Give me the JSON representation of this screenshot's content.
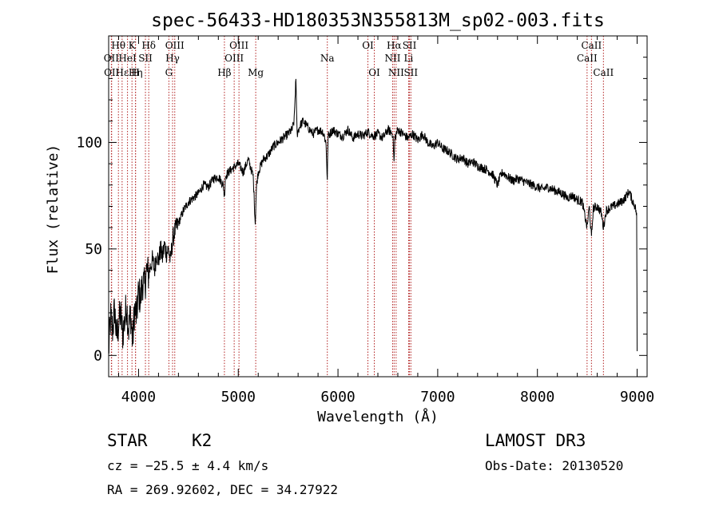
{
  "chart_data": {
    "type": "line",
    "title": "spec-56433-HD180353N355813M_sp02-003.fits",
    "xlabel": "Wavelength (Å)",
    "ylabel": "Flux (relative)",
    "xlim": [
      3700,
      9100
    ],
    "ylim": [
      -10,
      150
    ],
    "xticks": [
      4000,
      5000,
      6000,
      7000,
      8000,
      9000
    ],
    "yticks": [
      0,
      50,
      100
    ],
    "spectrum_anchors": {
      "x": [
        3700,
        3720,
        3740,
        3760,
        3780,
        3800,
        3820,
        3840,
        3860,
        3880,
        3900,
        3920,
        3940,
        3960,
        3980,
        4000,
        4020,
        4040,
        4060,
        4080,
        4100,
        4120,
        4140,
        4160,
        4180,
        4200,
        4220,
        4240,
        4260,
        4280,
        4300,
        4320,
        4340,
        4360,
        4380,
        4400,
        4450,
        4500,
        4550,
        4600,
        4650,
        4700,
        4750,
        4800,
        4850,
        4861,
        4870,
        4900,
        4950,
        5000,
        5050,
        5100,
        5150,
        5170,
        5183,
        5200,
        5250,
        5300,
        5350,
        5400,
        5450,
        5500,
        5540,
        5560,
        5577,
        5590,
        5620,
        5650,
        5700,
        5750,
        5800,
        5850,
        5880,
        5893,
        5900,
        5950,
        6000,
        6050,
        6100,
        6150,
        6200,
        6250,
        6300,
        6350,
        6400,
        6450,
        6500,
        6550,
        6563,
        6570,
        6600,
        6650,
        6700,
        6750,
        6800,
        6850,
        6900,
        6950,
        7000,
        7050,
        7100,
        7150,
        7200,
        7250,
        7300,
        7350,
        7400,
        7450,
        7500,
        7550,
        7600,
        7620,
        7650,
        7700,
        7750,
        7800,
        7850,
        7900,
        7950,
        8000,
        8050,
        8100,
        8150,
        8200,
        8250,
        8300,
        8350,
        8400,
        8450,
        8498,
        8520,
        8542,
        8560,
        8600,
        8640,
        8662,
        8690,
        8720,
        8760,
        8800,
        8840,
        8880,
        8920,
        8950,
        8980,
        8995,
        9000
      ],
      "y": [
        2,
        18,
        12,
        22,
        8,
        15,
        20,
        10,
        16,
        24,
        12,
        20,
        6,
        22,
        18,
        30,
        26,
        35,
        32,
        40,
        38,
        42,
        45,
        40,
        48,
        44,
        50,
        46,
        52,
        48,
        50,
        44,
        54,
        58,
        60,
        62,
        68,
        72,
        74,
        76,
        80,
        79,
        83,
        84,
        80,
        74,
        84,
        86,
        88,
        90,
        86,
        92,
        84,
        62,
        80,
        86,
        92,
        94,
        98,
        100,
        102,
        104,
        106,
        110,
        130,
        104,
        108,
        110,
        107,
        104,
        106,
        105,
        100,
        82,
        103,
        106,
        104,
        103,
        106,
        102,
        104,
        103,
        105,
        103,
        104,
        102,
        106,
        104,
        90,
        102,
        106,
        104,
        102,
        104,
        101,
        104,
        100,
        98,
        100,
        97,
        96,
        94,
        92,
        93,
        90,
        91,
        89,
        88,
        87,
        85,
        80,
        83,
        86,
        84,
        82,
        83,
        82,
        81,
        80,
        79,
        78,
        79,
        78,
        77,
        76,
        74,
        75,
        73,
        72,
        60,
        70,
        55,
        69,
        70,
        67,
        60,
        68,
        69,
        70,
        71,
        72,
        74,
        77,
        73,
        70,
        66,
        2
      ]
    },
    "line_markers": [
      {
        "label": "Hθ",
        "x": 3798,
        "row": 1
      },
      {
        "label": "OII",
        "x": 3727,
        "row": 2
      },
      {
        "label": "OII",
        "x": 3730,
        "row": 3
      },
      {
        "label": "Hε",
        "x": 3835,
        "row": 3
      },
      {
        "label": "HeI",
        "x": 3889,
        "row": 2
      },
      {
        "label": "K",
        "x": 3934,
        "row": 1
      },
      {
        "label": "Hη",
        "x": 3970,
        "row": 3
      },
      {
        "label": "H",
        "x": 3969,
        "row": 3
      },
      {
        "label": "SII",
        "x": 4069,
        "row": 2
      },
      {
        "label": "Hδ",
        "x": 4102,
        "row": 1
      },
      {
        "label": "G",
        "x": 4304,
        "row": 3
      },
      {
        "label": "Hγ",
        "x": 4341,
        "row": 2
      },
      {
        "label": "OIII",
        "x": 4363,
        "row": 1
      },
      {
        "label": "Hβ",
        "x": 4861,
        "row": 3
      },
      {
        "label": "OIII",
        "x": 4959,
        "row": 2
      },
      {
        "label": "OIII",
        "x": 5007,
        "row": 1
      },
      {
        "label": "Mg",
        "x": 5175,
        "row": 3
      },
      {
        "label": "Na",
        "x": 5893,
        "row": 2
      },
      {
        "label": "OI",
        "x": 6300,
        "row": 1
      },
      {
        "label": "OI",
        "x": 6364,
        "row": 3
      },
      {
        "label": "NII",
        "x": 6548,
        "row": 2
      },
      {
        "label": "Hα",
        "x": 6563,
        "row": 1
      },
      {
        "label": "NII",
        "x": 6583,
        "row": 3
      },
      {
        "label": "SII",
        "x": 6717,
        "row": 1
      },
      {
        "label": "Li",
        "x": 6708,
        "row": 2
      },
      {
        "label": "SII",
        "x": 6731,
        "row": 3
      },
      {
        "label": "CaII",
        "x": 8498,
        "row": 2
      },
      {
        "label": "CaII",
        "x": 8542,
        "row": 1
      },
      {
        "label": "CaII",
        "x": 8662,
        "row": 3
      }
    ]
  },
  "info": {
    "star_label": "STAR",
    "class_label": "K2",
    "survey": "LAMOST DR3",
    "velocity": "cz = −25.5 ± 4.4 km/s",
    "obs_date": "Obs-Date: 20130520",
    "coords": "RA = 269.92602, DEC =  34.27922"
  },
  "colors": {
    "line_marker": "#b22222",
    "spectrum": "#000000",
    "axes": "#000000"
  }
}
